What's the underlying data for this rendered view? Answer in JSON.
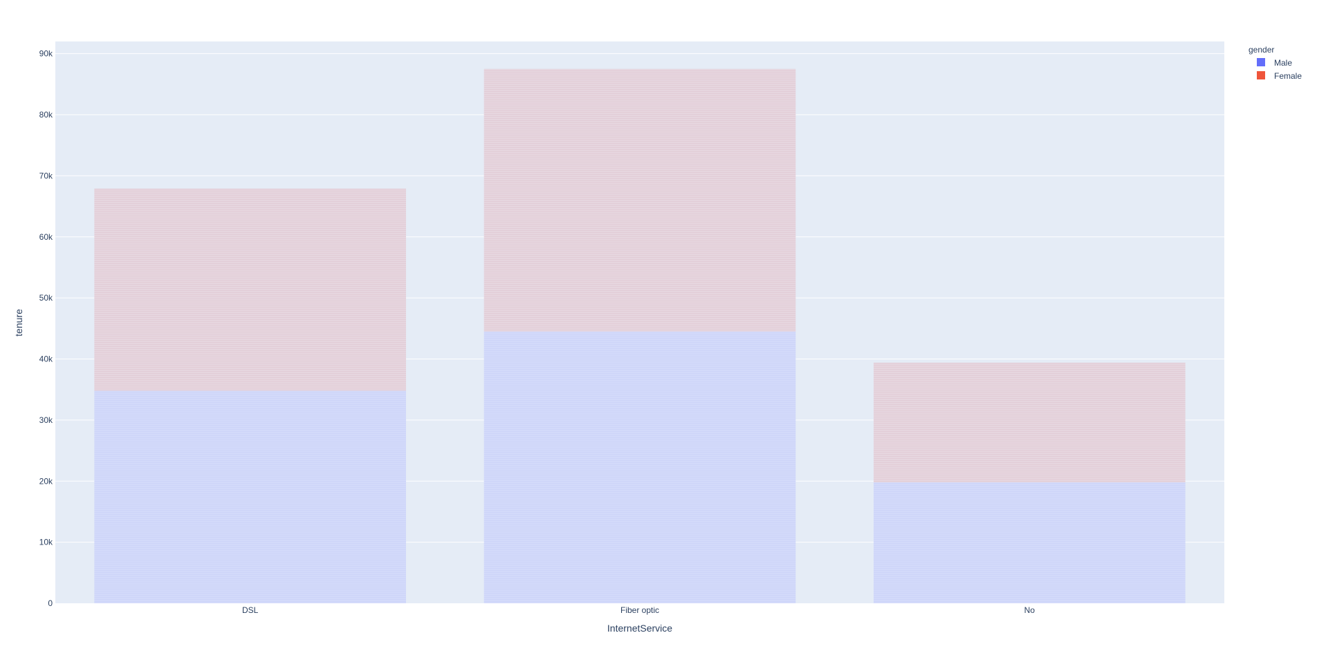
{
  "chart_data": {
    "type": "bar",
    "barmode": "stack",
    "categories": [
      "DSL",
      "Fiber optic",
      "No"
    ],
    "series": [
      {
        "name": "Male",
        "values": [
          34800,
          44500,
          19800
        ],
        "color": "#636efa"
      },
      {
        "name": "Female",
        "values": [
          33100,
          43000,
          19600
        ],
        "color": "#ef553b"
      }
    ],
    "xlabel": "InternetService",
    "ylabel": "tenure",
    "ylim": [
      0,
      92000
    ],
    "yticks": [
      0,
      10000,
      20000,
      30000,
      40000,
      50000,
      60000,
      70000,
      80000,
      90000
    ],
    "ytick_labels": [
      "0",
      "10k",
      "20k",
      "30k",
      "40k",
      "50k",
      "60k",
      "70k",
      "80k",
      "90k"
    ],
    "legend": {
      "title": "gender",
      "placement": "top-right"
    },
    "grid": true,
    "colors": {
      "plot_background": "#e5ecf6",
      "gridline": "#ffffff",
      "text": "#2a3f5f"
    }
  }
}
